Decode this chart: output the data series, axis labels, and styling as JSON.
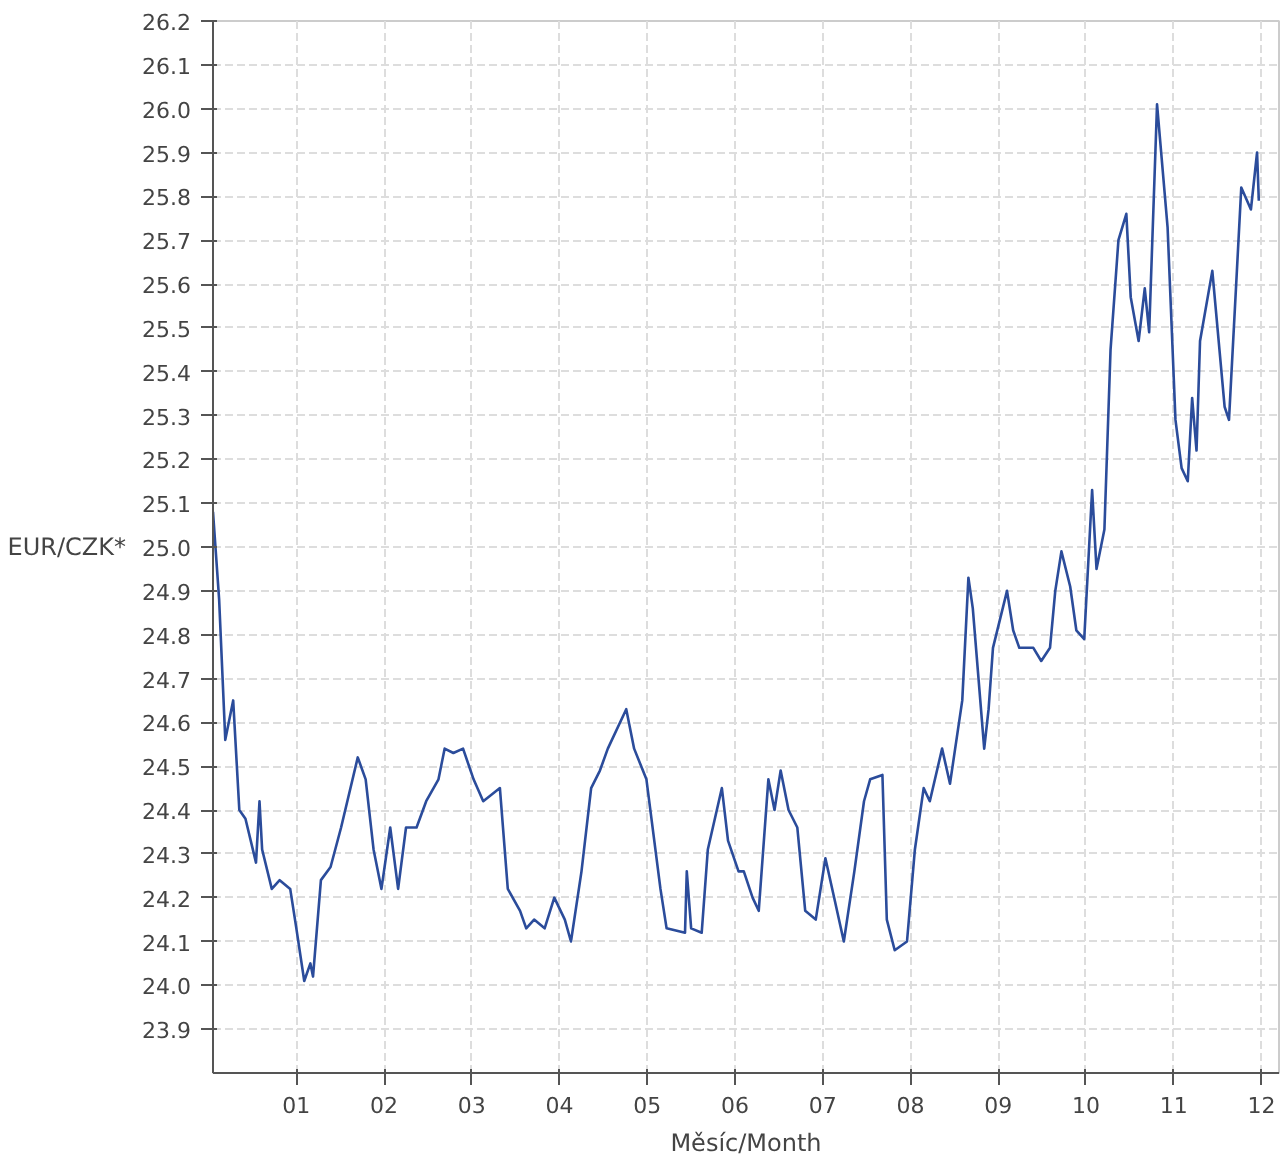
{
  "chart_data": {
    "type": "line",
    "xlabel": "Měsíc/Month",
    "ylabel": "EUR/CZK*",
    "xlim": [
      0.05,
      12.2
    ],
    "ylim": [
      23.8,
      26.2
    ],
    "xticks": [
      {
        "value": 1,
        "label": "01"
      },
      {
        "value": 2,
        "label": "02"
      },
      {
        "value": 3,
        "label": "03"
      },
      {
        "value": 4,
        "label": "04"
      },
      {
        "value": 5,
        "label": "05"
      },
      {
        "value": 6,
        "label": "06"
      },
      {
        "value": 7,
        "label": "07"
      },
      {
        "value": 8,
        "label": "08"
      },
      {
        "value": 9,
        "label": "09"
      },
      {
        "value": 10,
        "label": "10"
      },
      {
        "value": 11,
        "label": "11"
      },
      {
        "value": 12,
        "label": "12"
      }
    ],
    "yticks": [
      23.9,
      {
        "value": 24,
        "label": "24.0"
      },
      24.1,
      24.2,
      24.3,
      24.4,
      24.5,
      24.6,
      24.7,
      24.8,
      24.9,
      {
        "value": 25,
        "label": "25.0"
      },
      25.1,
      25.2,
      25.3,
      25.4,
      25.5,
      25.6,
      25.7,
      25.8,
      25.9,
      {
        "value": 26,
        "label": "26.0"
      },
      26.1,
      26.2
    ],
    "grid": true,
    "line_style": "solid",
    "series": [
      {
        "color": "#2b4c9b",
        "x": [
          0.05,
          0.12,
          0.19,
          0.28,
          0.35,
          0.42,
          0.54,
          0.58,
          0.61,
          0.72,
          0.81,
          0.93,
          1.0,
          1.09,
          1.16,
          1.19,
          1.28,
          1.39,
          1.51,
          1.7,
          1.79,
          1.88,
          1.97,
          2.07,
          2.16,
          2.25,
          2.37,
          2.48,
          2.62,
          2.69,
          2.79,
          2.9,
          3.02,
          3.13,
          3.32,
          3.41,
          3.55,
          3.62,
          3.71,
          3.83,
          3.94,
          4.06,
          4.13,
          4.25,
          4.36,
          4.46,
          4.55,
          4.76,
          4.85,
          4.99,
          5.15,
          5.22,
          5.43,
          5.45,
          5.5,
          5.62,
          5.69,
          5.85,
          5.92,
          6.04,
          6.1,
          6.2,
          6.27,
          6.38,
          6.45,
          6.52,
          6.61,
          6.71,
          6.8,
          6.92,
          7.03,
          7.13,
          7.24,
          7.36,
          7.47,
          7.54,
          7.68,
          7.73,
          7.82,
          7.96,
          8.05,
          8.15,
          8.22,
          8.36,
          8.45,
          8.59,
          8.66,
          8.71,
          8.84,
          8.89,
          8.94,
          9.1,
          9.17,
          9.24,
          9.4,
          9.49,
          9.59,
          9.65,
          9.72,
          9.82,
          9.89,
          9.98,
          10.07,
          10.12,
          10.21,
          10.28,
          10.37,
          10.46,
          10.51,
          10.6,
          10.67,
          10.72,
          10.81,
          10.93,
          11.02,
          11.09,
          11.16,
          11.21,
          11.26,
          11.3,
          11.44,
          11.58,
          11.63,
          11.72,
          11.77,
          11.88,
          11.95,
          11.97
        ],
        "values": [
          25.08,
          24.88,
          24.56,
          24.65,
          24.4,
          24.38,
          24.28,
          24.42,
          24.31,
          24.22,
          24.24,
          24.22,
          24.13,
          24.01,
          24.05,
          24.02,
          24.24,
          24.27,
          24.36,
          24.52,
          24.47,
          24.31,
          24.22,
          24.36,
          24.22,
          24.36,
          24.36,
          24.42,
          24.47,
          24.54,
          24.53,
          24.54,
          24.47,
          24.42,
          24.45,
          24.22,
          24.17,
          24.13,
          24.15,
          24.13,
          24.2,
          24.15,
          24.1,
          24.26,
          24.45,
          24.49,
          24.54,
          24.63,
          24.54,
          24.47,
          24.22,
          24.13,
          24.12,
          24.26,
          24.13,
          24.12,
          24.31,
          24.45,
          24.33,
          24.26,
          24.26,
          24.2,
          24.17,
          24.47,
          24.4,
          24.49,
          24.4,
          24.36,
          24.17,
          24.15,
          24.29,
          24.2,
          24.1,
          24.26,
          24.42,
          24.47,
          24.48,
          24.15,
          24.08,
          24.1,
          24.31,
          24.45,
          24.42,
          24.54,
          24.46,
          24.65,
          24.93,
          24.86,
          24.54,
          24.63,
          24.77,
          24.9,
          24.81,
          24.77,
          24.77,
          24.74,
          24.77,
          24.9,
          24.99,
          24.91,
          24.81,
          24.79,
          25.13,
          24.95,
          25.04,
          25.45,
          25.7,
          25.76,
          25.57,
          25.47,
          25.59,
          25.49,
          26.01,
          25.73,
          25.29,
          25.18,
          25.15,
          25.34,
          25.22,
          25.47,
          25.63,
          25.32,
          25.29,
          25.63,
          25.82,
          25.77,
          25.9,
          25.79
        ]
      }
    ]
  }
}
